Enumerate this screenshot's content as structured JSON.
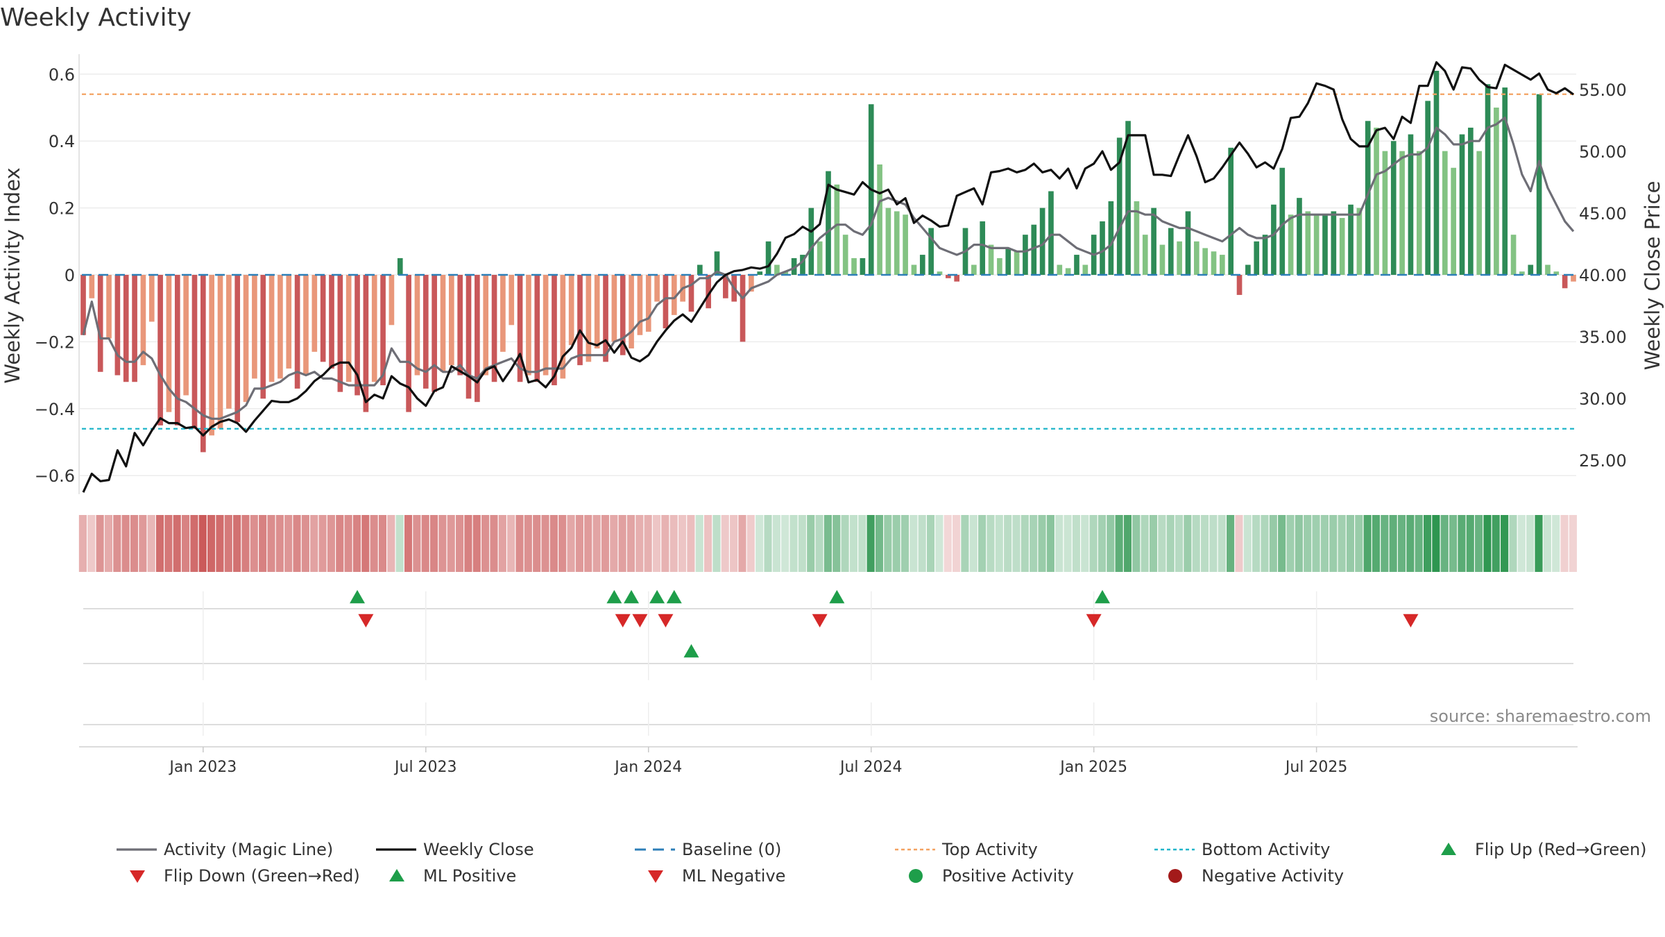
{
  "chart_data": {
    "type": "bar",
    "title": "Weekly Activity",
    "ylabel_left": "Weekly Activity Index",
    "ylabel_right": "Weekly Close Price",
    "ylim_left": [
      -0.65,
      0.65
    ],
    "ylim_right": [
      22.0,
      57.0
    ],
    "yticks_left": [
      {
        "v": 0.6,
        "label": "0.6"
      },
      {
        "v": 0.4,
        "label": "0.4"
      },
      {
        "v": 0.2,
        "label": "0.2"
      },
      {
        "v": 0.0,
        "label": "0"
      },
      {
        "v": -0.2,
        "label": "−0.2"
      },
      {
        "v": -0.4,
        "label": "−0.4"
      },
      {
        "v": -0.6,
        "label": "−0.6"
      }
    ],
    "yticks_right": [
      {
        "v": 55,
        "label": "55.00"
      },
      {
        "v": 50,
        "label": "50.00"
      },
      {
        "v": 45,
        "label": "45.00"
      },
      {
        "v": 40,
        "label": "40.00"
      },
      {
        "v": 35,
        "label": "35.00"
      },
      {
        "v": 30,
        "label": "30.00"
      },
      {
        "v": 25,
        "label": "25.00"
      }
    ],
    "start_week": "2022-10-02",
    "x_ticks": [
      {
        "week": 14,
        "label": "Jan 2023"
      },
      {
        "week": 40,
        "label": "Jul 2023"
      },
      {
        "week": 66,
        "label": "Jan 2024"
      },
      {
        "week": 92,
        "label": "Jul 2024"
      },
      {
        "week": 118,
        "label": "Jan 2025"
      },
      {
        "week": 144,
        "label": "Jul 2025"
      }
    ],
    "top_activity": 0.54,
    "bottom_activity": -0.46,
    "baseline": 0,
    "activity_index": [
      -0.18,
      -0.07,
      -0.29,
      -0.19,
      -0.3,
      -0.32,
      -0.32,
      -0.27,
      -0.14,
      -0.45,
      -0.41,
      -0.45,
      -0.36,
      -0.46,
      -0.53,
      -0.48,
      -0.46,
      -0.4,
      -0.44,
      -0.38,
      -0.31,
      -0.37,
      -0.32,
      -0.31,
      -0.28,
      -0.34,
      -0.3,
      -0.23,
      -0.26,
      -0.28,
      -0.35,
      -0.32,
      -0.36,
      -0.41,
      -0.32,
      -0.33,
      -0.15,
      0.05,
      -0.41,
      -0.3,
      -0.34,
      -0.35,
      -0.29,
      -0.27,
      -0.3,
      -0.37,
      -0.38,
      -0.3,
      -0.32,
      -0.23,
      -0.15,
      -0.32,
      -0.3,
      -0.32,
      -0.3,
      -0.33,
      -0.31,
      -0.21,
      -0.27,
      -0.26,
      -0.22,
      -0.26,
      -0.2,
      -0.24,
      -0.22,
      -0.18,
      -0.17,
      -0.08,
      -0.16,
      -0.12,
      -0.08,
      -0.11,
      0.03,
      -0.1,
      0.07,
      -0.07,
      -0.08,
      -0.2,
      -0.05,
      0.01,
      0.1,
      0.03,
      0.01,
      0.05,
      0.06,
      0.2,
      0.1,
      0.31,
      0.27,
      0.12,
      0.05,
      0.05,
      0.51,
      0.33,
      0.2,
      0.19,
      0.18,
      0.03,
      0.06,
      0.14,
      0.01,
      -0.01,
      -0.02,
      0.14,
      0.03,
      0.16,
      0.09,
      0.05,
      0.08,
      0.07,
      0.12,
      0.15,
      0.2,
      0.25,
      0.03,
      0.02,
      0.06,
      0.03,
      0.12,
      0.16,
      0.22,
      0.41,
      0.46,
      0.22,
      0.12,
      0.2,
      0.09,
      0.14,
      0.1,
      0.19,
      0.1,
      0.08,
      0.07,
      0.06,
      0.38,
      -0.06,
      0.03,
      0.1,
      0.12,
      0.21,
      0.32,
      0.18,
      0.23,
      0.19,
      0.18,
      0.18,
      0.19,
      0.17,
      0.21,
      0.2,
      0.46,
      0.44,
      0.37,
      0.4,
      0.37,
      0.42,
      0.37,
      0.52,
      0.61,
      0.37,
      0.32,
      0.42,
      0.44,
      0.37,
      0.57,
      0.5,
      0.56,
      0.12,
      0.01,
      0.03,
      0.54,
      0.03,
      0.01,
      -0.04,
      -0.02
    ],
    "magic_line": [
      -0.18,
      -0.08,
      -0.19,
      -0.19,
      -0.24,
      -0.26,
      -0.26,
      -0.23,
      -0.25,
      -0.3,
      -0.34,
      -0.37,
      -0.38,
      -0.4,
      -0.42,
      -0.43,
      -0.43,
      -0.42,
      -0.41,
      -0.39,
      -0.34,
      -0.34,
      -0.33,
      -0.32,
      -0.3,
      -0.29,
      -0.3,
      -0.29,
      -0.31,
      -0.31,
      -0.32,
      -0.33,
      -0.33,
      -0.33,
      -0.33,
      -0.3,
      -0.22,
      -0.26,
      -0.26,
      -0.28,
      -0.29,
      -0.27,
      -0.29,
      -0.29,
      -0.27,
      -0.3,
      -0.31,
      -0.28,
      -0.27,
      -0.26,
      -0.25,
      -0.28,
      -0.29,
      -0.29,
      -0.28,
      -0.28,
      -0.28,
      -0.25,
      -0.24,
      -0.24,
      -0.24,
      -0.24,
      -0.2,
      -0.19,
      -0.17,
      -0.14,
      -0.13,
      -0.09,
      -0.07,
      -0.07,
      -0.04,
      -0.03,
      -0.01,
      -0.01,
      0.01,
      0.0,
      -0.04,
      -0.07,
      -0.04,
      -0.03,
      -0.02,
      0.0,
      0.01,
      0.02,
      0.04,
      0.08,
      0.11,
      0.13,
      0.15,
      0.15,
      0.13,
      0.12,
      0.15,
      0.22,
      0.23,
      0.22,
      0.21,
      0.17,
      0.14,
      0.11,
      0.08,
      0.07,
      0.06,
      0.07,
      0.09,
      0.09,
      0.08,
      0.08,
      0.08,
      0.07,
      0.07,
      0.08,
      0.09,
      0.12,
      0.12,
      0.1,
      0.08,
      0.07,
      0.06,
      0.07,
      0.09,
      0.14,
      0.19,
      0.19,
      0.18,
      0.18,
      0.16,
      0.15,
      0.14,
      0.14,
      0.13,
      0.12,
      0.11,
      0.1,
      0.12,
      0.14,
      0.12,
      0.11,
      0.11,
      0.12,
      0.15,
      0.17,
      0.18,
      0.18,
      0.18,
      0.18,
      0.18,
      0.18,
      0.18,
      0.18,
      0.24,
      0.3,
      0.31,
      0.33,
      0.35,
      0.36,
      0.36,
      0.38,
      0.44,
      0.42,
      0.39,
      0.39,
      0.4,
      0.4,
      0.44,
      0.45,
      0.47,
      0.39,
      0.3,
      0.25,
      0.34,
      0.26,
      0.21,
      0.16,
      0.13
    ],
    "weekly_close": [
      22.4,
      23.9,
      23.3,
      23.4,
      25.8,
      24.5,
      27.2,
      26.2,
      27.4,
      28.4,
      28.0,
      28.0,
      27.6,
      27.7,
      27.0,
      27.7,
      28.1,
      28.3,
      28.0,
      27.3,
      28.2,
      29.0,
      29.8,
      29.7,
      29.7,
      30.0,
      30.6,
      31.4,
      31.9,
      32.6,
      32.9,
      32.9,
      31.9,
      29.7,
      30.3,
      30.0,
      31.8,
      31.2,
      30.9,
      30.0,
      29.4,
      30.6,
      30.9,
      32.6,
      32.2,
      31.8,
      31.3,
      32.3,
      32.6,
      31.4,
      32.4,
      33.6,
      31.3,
      31.5,
      30.9,
      31.8,
      33.4,
      34.1,
      35.5,
      34.5,
      34.3,
      34.7,
      33.7,
      34.6,
      33.3,
      33.0,
      33.5,
      34.6,
      35.5,
      36.3,
      36.8,
      36.2,
      37.3,
      38.4,
      39.4,
      40.0,
      40.3,
      40.4,
      40.6,
      40.5,
      40.7,
      41.7,
      43.0,
      43.3,
      43.9,
      43.5,
      44.1,
      47.3,
      46.9,
      46.7,
      46.5,
      47.5,
      46.9,
      46.6,
      46.9,
      45.7,
      46.2,
      44.2,
      44.8,
      44.4,
      43.9,
      44.0,
      46.4,
      46.7,
      47.0,
      45.7,
      48.3,
      48.4,
      48.6,
      48.3,
      48.5,
      49.0,
      48.3,
      48.5,
      47.8,
      48.6,
      47.0,
      48.6,
      49.0,
      50.0,
      48.5,
      49.1,
      51.3,
      51.3,
      51.3,
      48.1,
      48.1,
      48.0,
      49.7,
      51.3,
      49.6,
      47.5,
      47.8,
      48.7,
      49.7,
      50.7,
      49.8,
      48.7,
      49.1,
      48.6,
      50.2,
      52.7,
      52.8,
      53.9,
      55.5,
      55.3,
      55.0,
      52.6,
      51.0,
      50.4,
      50.4,
      51.7,
      51.9,
      51.0,
      52.8,
      52.3,
      55.3,
      55.3,
      57.2,
      56.5,
      55.0,
      56.8,
      56.7,
      55.8,
      55.2,
      55.1,
      57.0,
      56.6,
      56.2,
      55.8,
      56.3,
      55.0,
      54.7,
      55.1,
      54.6
    ],
    "bar_colors": {
      "neg_dark": "#c9585a",
      "neg_light": "#e9977a",
      "pos_dark": "#2e8b57",
      "pos_light": "#83c383"
    },
    "line_colors": {
      "magic_line": "#6e6e76",
      "weekly_close": "#111111",
      "baseline": "#2d7fb8",
      "top": "#f4a261",
      "bottom": "#1fb5c9"
    },
    "markers": {
      "flip_rows": [
        {
          "week": 32,
          "dir": "up"
        },
        {
          "week": 33,
          "dir": "down"
        },
        {
          "week": 62,
          "dir": "up"
        },
        {
          "week": 63,
          "dir": "down"
        },
        {
          "week": 64,
          "dir": "up"
        },
        {
          "week": 65,
          "dir": "down"
        },
        {
          "week": 67,
          "dir": "up"
        },
        {
          "week": 68,
          "dir": "down"
        },
        {
          "week": 69,
          "dir": "up"
        },
        {
          "week": 86,
          "dir": "down"
        },
        {
          "week": 88,
          "dir": "up"
        },
        {
          "week": 118,
          "dir": "down"
        },
        {
          "week": 119,
          "dir": "up"
        },
        {
          "week": 155,
          "dir": "down"
        }
      ],
      "ml_row": [
        {
          "week": 71,
          "dir": "up"
        }
      ],
      "up_color": "#1e9e4a",
      "down_color": "#d62828"
    },
    "watermark": "source: sharemaestro.com",
    "legend": [
      {
        "label": "Activity (Magic Line)",
        "kind": "line",
        "color": "#6e6e76"
      },
      {
        "label": "Weekly Close",
        "kind": "line",
        "color": "#111111"
      },
      {
        "label": "Baseline (0)",
        "kind": "dash",
        "color": "#2d7fb8"
      },
      {
        "label": "Top Activity",
        "kind": "dot",
        "color": "#f4a261"
      },
      {
        "label": "Bottom Activity",
        "kind": "dot",
        "color": "#1fb5c9"
      },
      {
        "label": "Flip Up (Red→Green)",
        "kind": "tri-up",
        "color": "#1e9e4a"
      },
      {
        "label": "Flip Down (Green→Red)",
        "kind": "tri-down",
        "color": "#d62828"
      },
      {
        "label": "ML Positive",
        "kind": "tri-up",
        "color": "#1e9e4a"
      },
      {
        "label": "ML Negative",
        "kind": "tri-down",
        "color": "#d62828"
      },
      {
        "label": "Positive Activity",
        "kind": "circle",
        "color": "#1e9e4a"
      },
      {
        "label": "Negative Activity",
        "kind": "circle",
        "color": "#a31a1a"
      }
    ]
  }
}
